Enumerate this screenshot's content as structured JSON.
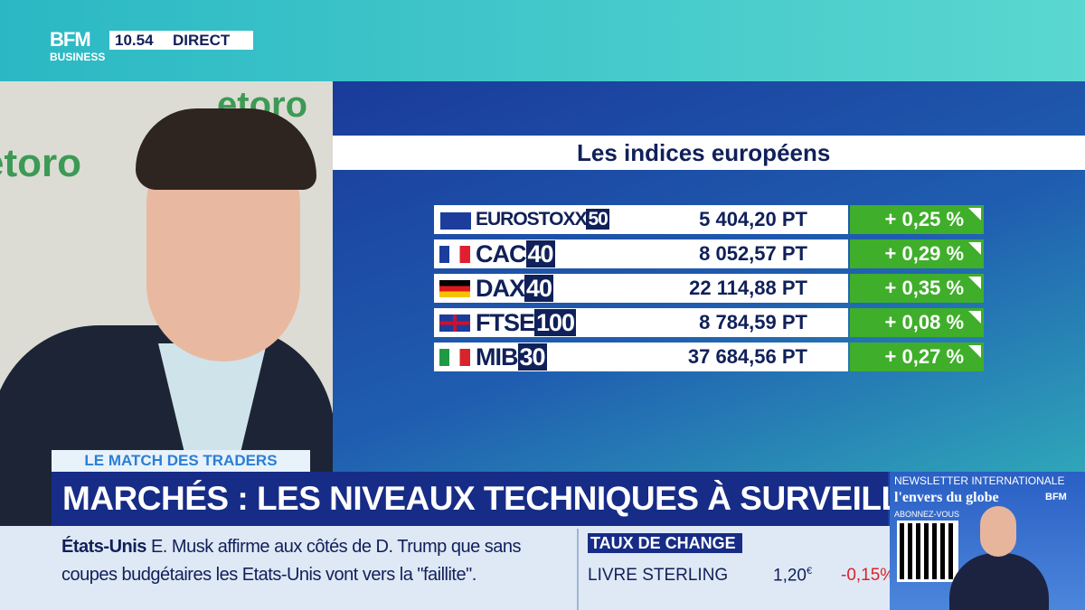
{
  "header": {
    "logo": "BFM",
    "logo_sub": "BUSINESS",
    "time": "10.54",
    "live": "DIRECT"
  },
  "video": {
    "brand": "etoro"
  },
  "table": {
    "title": "Les indices européens",
    "rows": [
      [
        "EUROSTOXX",
        "50",
        "5 404,20 PT",
        "+ 0,25 %"
      ],
      [
        "CAC",
        "40",
        "8 052,57 PT",
        "+ 0,29 %"
      ],
      [
        "DAX",
        "40",
        "22 114,88 PT",
        "+ 0,35 %"
      ],
      [
        "FTSE",
        "100",
        "8 784,59 PT",
        "+ 0,08 %"
      ],
      [
        "MIB",
        "30",
        "37 684,56 PT",
        "+ 0,27 %"
      ]
    ]
  },
  "banner": {
    "tag": "LE MATCH DES TRADERS",
    "headline": "MARCHÉS : LES NIVEAUX TECHNIQUES À SURVEILLER"
  },
  "ticker": {
    "label": "États-Unis",
    "text": "E. Musk affirme aux côtés de D. Trump que sans coupes budgétaires les Etats-Unis vont vers la \"faillite\"."
  },
  "exchange": {
    "title": "TAUX DE CHANGE",
    "currency": "LIVRE STERLING",
    "rate": "1,20",
    "unit": "€",
    "change": "-0,15%"
  },
  "newsletter": {
    "title": "NEWSLETTER INTERNATIONALE",
    "name": "l'envers du globe",
    "brand": "BFM",
    "cta": "ABONNEZ-VOUS"
  }
}
